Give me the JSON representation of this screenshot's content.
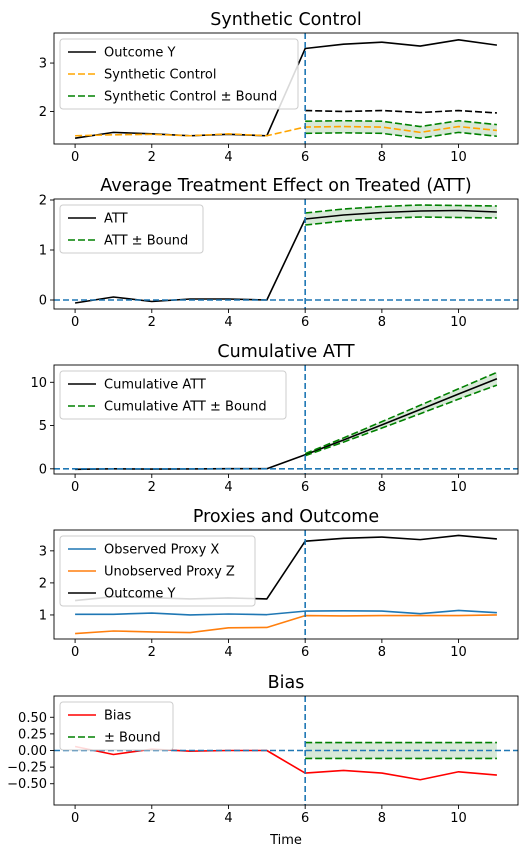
{
  "figure": {
    "xlabel": "Time"
  },
  "chart_data": [
    {
      "type": "line",
      "title": "Synthetic Control",
      "xlim": [
        -0.55,
        11.55
      ],
      "ylim": [
        1.33,
        3.62
      ],
      "xticks": [
        0,
        2,
        4,
        6,
        8,
        10
      ],
      "yticks": [
        2,
        3
      ],
      "treatment_time": 6,
      "legend": "top-left",
      "series": [
        {
          "name": "Outcome Y",
          "style": "solid",
          "color": "#000000",
          "x": [
            0,
            1,
            2,
            3,
            4,
            5,
            6,
            7,
            8,
            9,
            10,
            11
          ],
          "y": [
            1.45,
            1.57,
            1.54,
            1.5,
            1.53,
            1.5,
            3.3,
            3.39,
            3.43,
            3.35,
            3.48,
            3.37
          ]
        },
        {
          "name": "Synthetic Control",
          "style": "dashed",
          "color": "#ffa500",
          "x": [
            0,
            1,
            2,
            3,
            4,
            5,
            6,
            7,
            8,
            9,
            10,
            11
          ],
          "y": [
            1.5,
            1.52,
            1.53,
            1.5,
            1.54,
            1.5,
            1.68,
            1.69,
            1.68,
            1.57,
            1.69,
            1.61
          ]
        },
        {
          "name": "Synthetic Control ± Bound",
          "style": "dashed",
          "color": "#008000",
          "x": [
            6,
            7,
            8,
            9,
            10,
            11
          ],
          "y_upper": [
            1.8,
            1.81,
            1.8,
            1.69,
            1.81,
            1.73
          ],
          "y_lower": [
            1.55,
            1.56,
            1.55,
            1.45,
            1.57,
            1.49
          ]
        },
        {
          "name": "",
          "style": "dashed",
          "color": "#000000",
          "in_legend": false,
          "x": [
            6,
            7,
            8,
            9,
            10,
            11
          ],
          "y": [
            2.02,
            2.0,
            2.02,
            1.98,
            2.02,
            1.97
          ]
        }
      ],
      "band": {
        "x": [
          6,
          7,
          8,
          9,
          10,
          11
        ],
        "lower": [
          1.55,
          1.56,
          1.55,
          1.45,
          1.57,
          1.49
        ],
        "upper": [
          1.8,
          1.81,
          1.8,
          1.69,
          1.81,
          1.73
        ],
        "color": "#90c090"
      }
    },
    {
      "type": "line",
      "title": "Average Treatment Effect on Treated (ATT)",
      "xlim": [
        -0.55,
        11.55
      ],
      "ylim": [
        -0.18,
        2.02
      ],
      "xticks": [
        0,
        2,
        4,
        6,
        8,
        10
      ],
      "yticks": [
        0,
        1,
        2
      ],
      "treatment_time": 6,
      "hline": 0,
      "legend": "top-left",
      "series": [
        {
          "name": "ATT",
          "style": "solid",
          "color": "#000000",
          "x": [
            0,
            1,
            2,
            3,
            4,
            5,
            6,
            7,
            8,
            9,
            10,
            11
          ],
          "y": [
            -0.06,
            0.06,
            -0.03,
            0.02,
            0.02,
            0.0,
            1.62,
            1.7,
            1.75,
            1.78,
            1.79,
            1.76
          ]
        },
        {
          "name": "ATT ± Bound",
          "style": "dashed",
          "color": "#008000",
          "x": [
            6,
            7,
            8,
            9,
            10,
            11
          ],
          "y_upper": [
            1.74,
            1.82,
            1.87,
            1.9,
            1.89,
            1.88
          ],
          "y_lower": [
            1.5,
            1.58,
            1.63,
            1.66,
            1.65,
            1.64
          ]
        }
      ],
      "band": {
        "x": [
          6,
          7,
          8,
          9,
          10,
          11
        ],
        "lower": [
          1.5,
          1.58,
          1.63,
          1.66,
          1.65,
          1.64
        ],
        "upper": [
          1.74,
          1.82,
          1.87,
          1.9,
          1.89,
          1.88
        ],
        "color": "#90c090"
      }
    },
    {
      "type": "line",
      "title": "Cumulative ATT",
      "xlim": [
        -0.55,
        11.55
      ],
      "ylim": [
        -0.6,
        12.0
      ],
      "xticks": [
        0,
        2,
        4,
        6,
        8,
        10
      ],
      "yticks": [
        0,
        5,
        10
      ],
      "treatment_time": 6,
      "hline": 0,
      "legend": "top-left",
      "series": [
        {
          "name": "Cumulative ATT",
          "style": "solid",
          "color": "#000000",
          "x": [
            0,
            1,
            2,
            3,
            4,
            5,
            6,
            7,
            8,
            9,
            10,
            11
          ],
          "y": [
            -0.06,
            0.0,
            -0.03,
            -0.01,
            0.01,
            0.01,
            1.63,
            3.33,
            5.08,
            6.86,
            8.65,
            10.41
          ]
        },
        {
          "name": "Cumulative ATT ± Bound",
          "style": "dashed",
          "color": "#008000",
          "x": [
            6,
            7,
            8,
            9,
            10,
            11
          ],
          "y_upper": [
            1.75,
            3.57,
            5.45,
            7.35,
            9.25,
            11.15
          ],
          "y_lower": [
            1.51,
            3.09,
            4.71,
            6.37,
            8.05,
            9.68
          ]
        }
      ],
      "band": {
        "x": [
          6,
          7,
          8,
          9,
          10,
          11
        ],
        "lower": [
          1.51,
          3.09,
          4.71,
          6.37,
          8.05,
          9.68
        ],
        "upper": [
          1.75,
          3.57,
          5.45,
          7.35,
          9.25,
          11.15
        ],
        "color": "#90c090"
      }
    },
    {
      "type": "line",
      "title": "Proxies and Outcome",
      "xlim": [
        -0.55,
        11.55
      ],
      "ylim": [
        0.25,
        3.65
      ],
      "xticks": [
        0,
        2,
        4,
        6,
        8,
        10
      ],
      "yticks": [
        1,
        2,
        3
      ],
      "treatment_time": 6,
      "legend": "top-left",
      "series": [
        {
          "name": "Observed Proxy X",
          "style": "solid",
          "color": "#1f77b4",
          "x": [
            0,
            1,
            2,
            3,
            4,
            5,
            6,
            7,
            8,
            9,
            10,
            11
          ],
          "y": [
            1.02,
            1.02,
            1.06,
            1.0,
            1.03,
            1.01,
            1.12,
            1.13,
            1.12,
            1.04,
            1.14,
            1.07
          ]
        },
        {
          "name": "Unobserved Proxy Z",
          "style": "solid",
          "color": "#ff7f0e",
          "x": [
            0,
            1,
            2,
            3,
            4,
            5,
            6,
            7,
            8,
            9,
            10,
            11
          ],
          "y": [
            0.42,
            0.5,
            0.47,
            0.45,
            0.6,
            0.61,
            0.98,
            0.97,
            0.98,
            0.98,
            0.98,
            1.0
          ]
        },
        {
          "name": "Outcome Y",
          "style": "solid",
          "color": "#000000",
          "x": [
            0,
            1,
            2,
            3,
            4,
            5,
            6,
            7,
            8,
            9,
            10,
            11
          ],
          "y": [
            1.45,
            1.57,
            1.54,
            1.5,
            1.53,
            1.5,
            3.3,
            3.39,
            3.43,
            3.35,
            3.48,
            3.37
          ]
        }
      ]
    },
    {
      "type": "line",
      "title": "Bias",
      "xlim": [
        -0.55,
        11.55
      ],
      "ylim": [
        -0.82,
        0.82
      ],
      "xticks": [
        0,
        2,
        4,
        6,
        8,
        10
      ],
      "yticks": [
        -0.5,
        -0.25,
        0.0,
        0.25,
        0.5
      ],
      "ytick_labels": [
        "−0.50",
        "−0.25",
        "0.00",
        "0.25",
        "0.50"
      ],
      "treatment_time": 6,
      "hline": 0,
      "legend": "top-left",
      "series": [
        {
          "name": "Bias",
          "style": "solid",
          "color": "#ff0000",
          "x": [
            0,
            1,
            2,
            3,
            4,
            5,
            6,
            7,
            8,
            9,
            10,
            11
          ],
          "y": [
            0.06,
            -0.06,
            0.02,
            -0.01,
            0.0,
            0.0,
            -0.34,
            -0.3,
            -0.34,
            -0.44,
            -0.32,
            -0.37
          ]
        },
        {
          "name": "± Bound",
          "style": "dashed",
          "color": "#008000",
          "x": [
            6,
            7,
            8,
            9,
            10,
            11
          ],
          "y_upper": [
            0.12,
            0.12,
            0.12,
            0.12,
            0.12,
            0.12
          ],
          "y_lower": [
            -0.12,
            -0.12,
            -0.12,
            -0.12,
            -0.12,
            -0.12
          ]
        }
      ],
      "band": {
        "x": [
          6,
          7,
          8,
          9,
          10,
          11
        ],
        "lower": [
          -0.12,
          -0.12,
          -0.12,
          -0.12,
          -0.12,
          -0.12
        ],
        "upper": [
          0.12,
          0.12,
          0.12,
          0.12,
          0.12,
          0.12
        ],
        "color": "#90c090"
      }
    }
  ]
}
